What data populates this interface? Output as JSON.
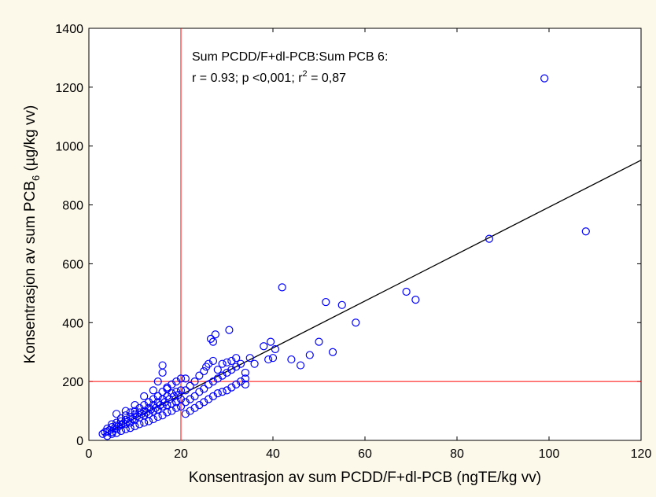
{
  "chart_data": {
    "type": "scatter",
    "xlabel": "Konsentrasjon av sum PCDD/F+dl-PCB (ngTE/kg vv)",
    "ylabel": {
      "prefix": "Konsentrasjon av sum PCB",
      "subscript": "6",
      "suffix": " (µg/kg vv)"
    },
    "annotation": {
      "line1": "Sum PCDD/F+dl-PCB:Sum PCB 6:",
      "line2_prefix": "r = 0.93; p <0,001; r",
      "line2_sup": "2",
      "line2_suffix": " = 0,87"
    },
    "xlim": [
      0,
      120
    ],
    "ylim": [
      0,
      1400
    ],
    "x_ticks": [
      "0",
      "20",
      "40",
      "60",
      "80",
      "100",
      "120"
    ],
    "y_ticks": [
      "0",
      "200",
      "400",
      "600",
      "800",
      "1000",
      "1200",
      "1400"
    ],
    "threshold_lines": {
      "x": 20,
      "y": 200,
      "color": "#ff0000"
    },
    "regression_line": {
      "x": [
        3,
        120
      ],
      "y": [
        19,
        952
      ],
      "color": "#000000"
    },
    "marker_color": "#0000ff",
    "grid": false,
    "points": [
      [
        3,
        22
      ],
      [
        3.5,
        28
      ],
      [
        4,
        30
      ],
      [
        4,
        40
      ],
      [
        4.5,
        35
      ],
      [
        5,
        28
      ],
      [
        5,
        45
      ],
      [
        5,
        55
      ],
      [
        5.5,
        40
      ],
      [
        6,
        38
      ],
      [
        6,
        50
      ],
      [
        6,
        60
      ],
      [
        6.5,
        48
      ],
      [
        7,
        52
      ],
      [
        7,
        65
      ],
      [
        7,
        75
      ],
      [
        7.5,
        58
      ],
      [
        8,
        55
      ],
      [
        8,
        70
      ],
      [
        8,
        85
      ],
      [
        8.5,
        65
      ],
      [
        9,
        60
      ],
      [
        9,
        80
      ],
      [
        9,
        95
      ],
      [
        9.5,
        72
      ],
      [
        10,
        70
      ],
      [
        10,
        88
      ],
      [
        10,
        100
      ],
      [
        10.5,
        82
      ],
      [
        11,
        78
      ],
      [
        11,
        95
      ],
      [
        11,
        110
      ],
      [
        11.5,
        90
      ],
      [
        12,
        85
      ],
      [
        12,
        100
      ],
      [
        12,
        120
      ],
      [
        12.5,
        95
      ],
      [
        13,
        90
      ],
      [
        13,
        110
      ],
      [
        13,
        130
      ],
      [
        13.5,
        105
      ],
      [
        14,
        100
      ],
      [
        14,
        120
      ],
      [
        14,
        140
      ],
      [
        14.5,
        110
      ],
      [
        15,
        105
      ],
      [
        15,
        130
      ],
      [
        15,
        150
      ],
      [
        15.5,
        120
      ],
      [
        16,
        115
      ],
      [
        16,
        140
      ],
      [
        16,
        165
      ],
      [
        16.5,
        130
      ],
      [
        17,
        120
      ],
      [
        17,
        150
      ],
      [
        17,
        175
      ],
      [
        17.5,
        140
      ],
      [
        18,
        125
      ],
      [
        18,
        160
      ],
      [
        18,
        190
      ],
      [
        18.5,
        150
      ],
      [
        19,
        130
      ],
      [
        19,
        165
      ],
      [
        19,
        200
      ],
      [
        19.5,
        155
      ],
      [
        20,
        140
      ],
      [
        20,
        170
      ],
      [
        20,
        210
      ],
      [
        4,
        15
      ],
      [
        5,
        22
      ],
      [
        6,
        25
      ],
      [
        7,
        32
      ],
      [
        8,
        38
      ],
      [
        9,
        42
      ],
      [
        10,
        48
      ],
      [
        11,
        55
      ],
      [
        12,
        60
      ],
      [
        13,
        65
      ],
      [
        14,
        72
      ],
      [
        15,
        80
      ],
      [
        16,
        85
      ],
      [
        17,
        95
      ],
      [
        18,
        100
      ],
      [
        19,
        110
      ],
      [
        20,
        115
      ],
      [
        6,
        90
      ],
      [
        8,
        100
      ],
      [
        10,
        120
      ],
      [
        12,
        150
      ],
      [
        14,
        170
      ],
      [
        15,
        200
      ],
      [
        16,
        230
      ],
      [
        17,
        180
      ],
      [
        16,
        255
      ],
      [
        21,
        90
      ],
      [
        21,
        130
      ],
      [
        21,
        170
      ],
      [
        21,
        210
      ],
      [
        22,
        100
      ],
      [
        22,
        140
      ],
      [
        22,
        185
      ],
      [
        23,
        110
      ],
      [
        23,
        150
      ],
      [
        23,
        200
      ],
      [
        24,
        120
      ],
      [
        24,
        165
      ],
      [
        24,
        220
      ],
      [
        25,
        130
      ],
      [
        25,
        175
      ],
      [
        25,
        235
      ],
      [
        25.5,
        250
      ],
      [
        26,
        140
      ],
      [
        26,
        190
      ],
      [
        26,
        260
      ],
      [
        26.5,
        345
      ],
      [
        27,
        150
      ],
      [
        27,
        200
      ],
      [
        27,
        270
      ],
      [
        27,
        335
      ],
      [
        27.5,
        360
      ],
      [
        28,
        160
      ],
      [
        28,
        210
      ],
      [
        28,
        240
      ],
      [
        29,
        165
      ],
      [
        29,
        220
      ],
      [
        29,
        260
      ],
      [
        30,
        170
      ],
      [
        30,
        230
      ],
      [
        30,
        265
      ],
      [
        30.5,
        375
      ],
      [
        31,
        180
      ],
      [
        31,
        240
      ],
      [
        31,
        270
      ],
      [
        32,
        190
      ],
      [
        32,
        250
      ],
      [
        32,
        280
      ],
      [
        33,
        200
      ],
      [
        33,
        260
      ],
      [
        34,
        210
      ],
      [
        34,
        230
      ],
      [
        34,
        190
      ],
      [
        35,
        280
      ],
      [
        36,
        260
      ],
      [
        38,
        320
      ],
      [
        39,
        275
      ],
      [
        39.5,
        335
      ],
      [
        40,
        280
      ],
      [
        40.5,
        310
      ],
      [
        42,
        520
      ],
      [
        44,
        275
      ],
      [
        46,
        255
      ],
      [
        48,
        290
      ],
      [
        50,
        335
      ],
      [
        51.5,
        470
      ],
      [
        53,
        300
      ],
      [
        55,
        460
      ],
      [
        58,
        400
      ],
      [
        69,
        505
      ],
      [
        71,
        478
      ],
      [
        87,
        685
      ],
      [
        99,
        1230
      ],
      [
        108,
        710
      ]
    ]
  }
}
